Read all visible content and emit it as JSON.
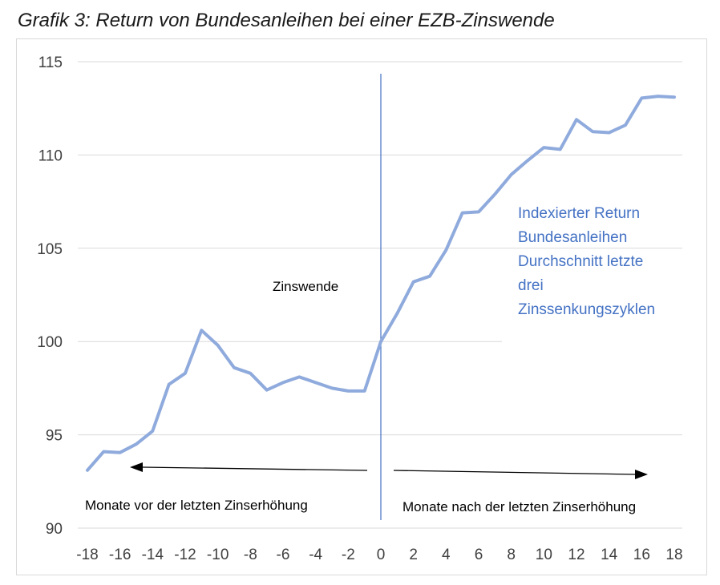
{
  "title": "Grafik 3: Return von Bundesanleihen bei einer EZB-Zinswende",
  "chart_data": {
    "type": "line",
    "title": "Grafik 3: Return von Bundesanleihen bei einer EZB-Zinswende",
    "xlabel": "",
    "ylabel": "",
    "xlim": [
      -18,
      18
    ],
    "ylim": [
      90,
      115
    ],
    "x_ticks": [
      -18,
      -16,
      -14,
      -12,
      -10,
      -8,
      -6,
      -4,
      -2,
      0,
      2,
      4,
      6,
      8,
      10,
      12,
      14,
      16,
      18
    ],
    "y_ticks": [
      90,
      95,
      100,
      105,
      110,
      115
    ],
    "grid": true,
    "legend": "none",
    "series": [
      {
        "name": "Indexierter Return Bundesanleihen Durchschnitt letzte drei Zinssenkungszyklen",
        "color": "#8faadc",
        "x": [
          -18,
          -17,
          -16,
          -15,
          -14,
          -13,
          -12,
          -11,
          -10,
          -9,
          -8,
          -7,
          -6,
          -5,
          -4,
          -3,
          -2,
          -1,
          0,
          1,
          2,
          3,
          4,
          5,
          6,
          7,
          8,
          9,
          10,
          11,
          12,
          13,
          14,
          15,
          16,
          17,
          18
        ],
        "values": [
          93.1,
          94.1,
          94.05,
          94.5,
          95.2,
          97.7,
          98.3,
          100.6,
          99.8,
          98.6,
          98.3,
          97.4,
          97.8,
          98.1,
          97.8,
          97.5,
          97.35,
          97.35,
          100.0,
          101.5,
          103.2,
          103.5,
          104.9,
          106.9,
          106.95,
          107.9,
          108.95,
          109.7,
          110.4,
          110.3,
          111.9,
          111.25,
          111.2,
          111.6,
          113.05,
          113.15,
          113.1
        ]
      }
    ],
    "vertical_line": {
      "x": 0,
      "color": "#4472c4"
    },
    "annotations": {
      "zinswende": "Zinswende",
      "series_label_lines": [
        "Indexierter Return",
        "Bundesanleihen",
        "Durchschnitt letzte",
        "drei",
        "Zinssenkungszyklen"
      ],
      "left_arrow_text": "Monate vor der letzten Zinserhöhung",
      "right_arrow_text": "Monate nach der letzten Zinserhöhung"
    }
  }
}
